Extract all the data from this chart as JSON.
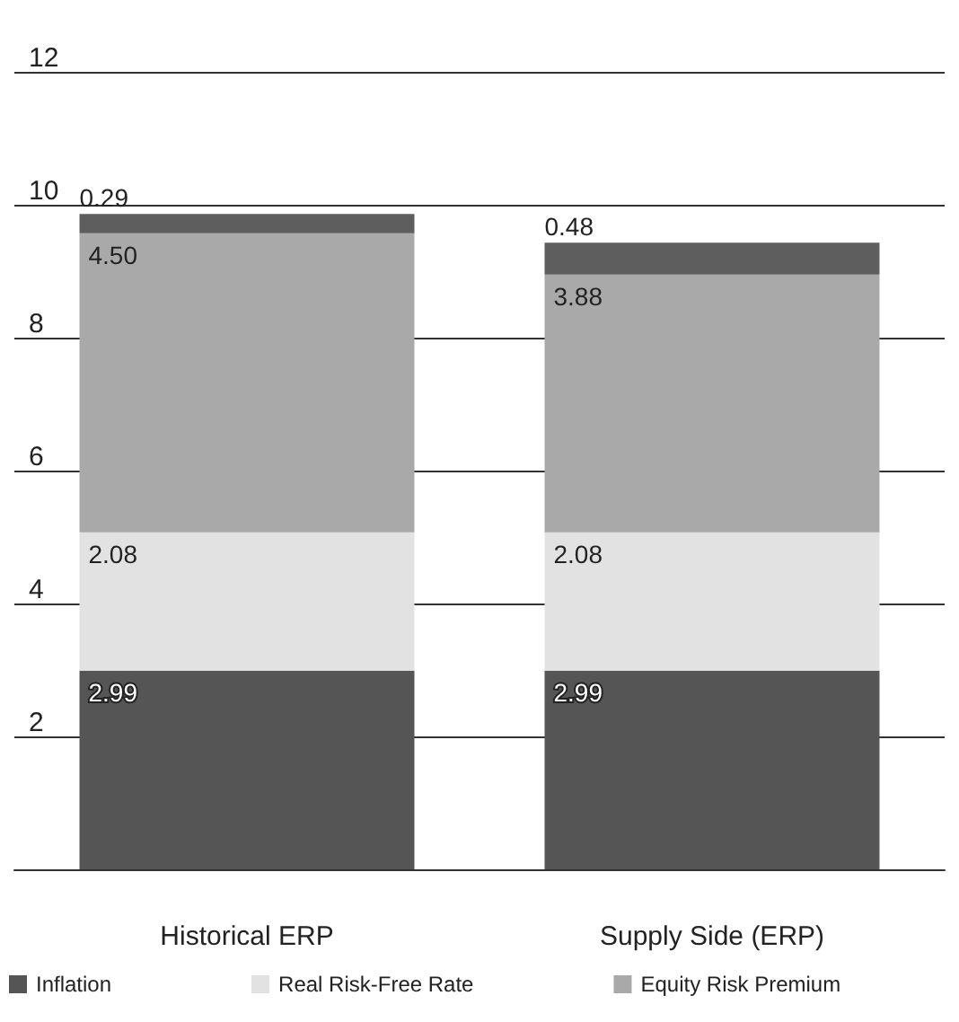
{
  "chart_data": {
    "type": "bar",
    "stacked": true,
    "categories": [
      "Historical ERP",
      "Supply Side (ERP)"
    ],
    "series": [
      {
        "name": "Inflation",
        "color": "#555555",
        "values": [
          2.99,
          2.99
        ],
        "value_labels": [
          "2.99",
          "2.99"
        ]
      },
      {
        "name": "Real Risk-Free Rate",
        "color": "#e2e2e2",
        "values": [
          2.08,
          2.08
        ],
        "value_labels": [
          "2.08",
          "2.08"
        ]
      },
      {
        "name": "Equity Risk Premium",
        "color": "#a9a9a9",
        "values": [
          4.5,
          3.88
        ],
        "value_labels": [
          "4.50",
          "3.88"
        ]
      },
      {
        "color": "#5e5e5e",
        "values": [
          0.29,
          0.48
        ],
        "value_labels": [
          "0.29",
          "0.48"
        ]
      }
    ],
    "ylim": [
      0,
      12
    ],
    "yticks": [
      2,
      4,
      6,
      8,
      10,
      12
    ],
    "grid": "y",
    "legend": "bottom"
  }
}
